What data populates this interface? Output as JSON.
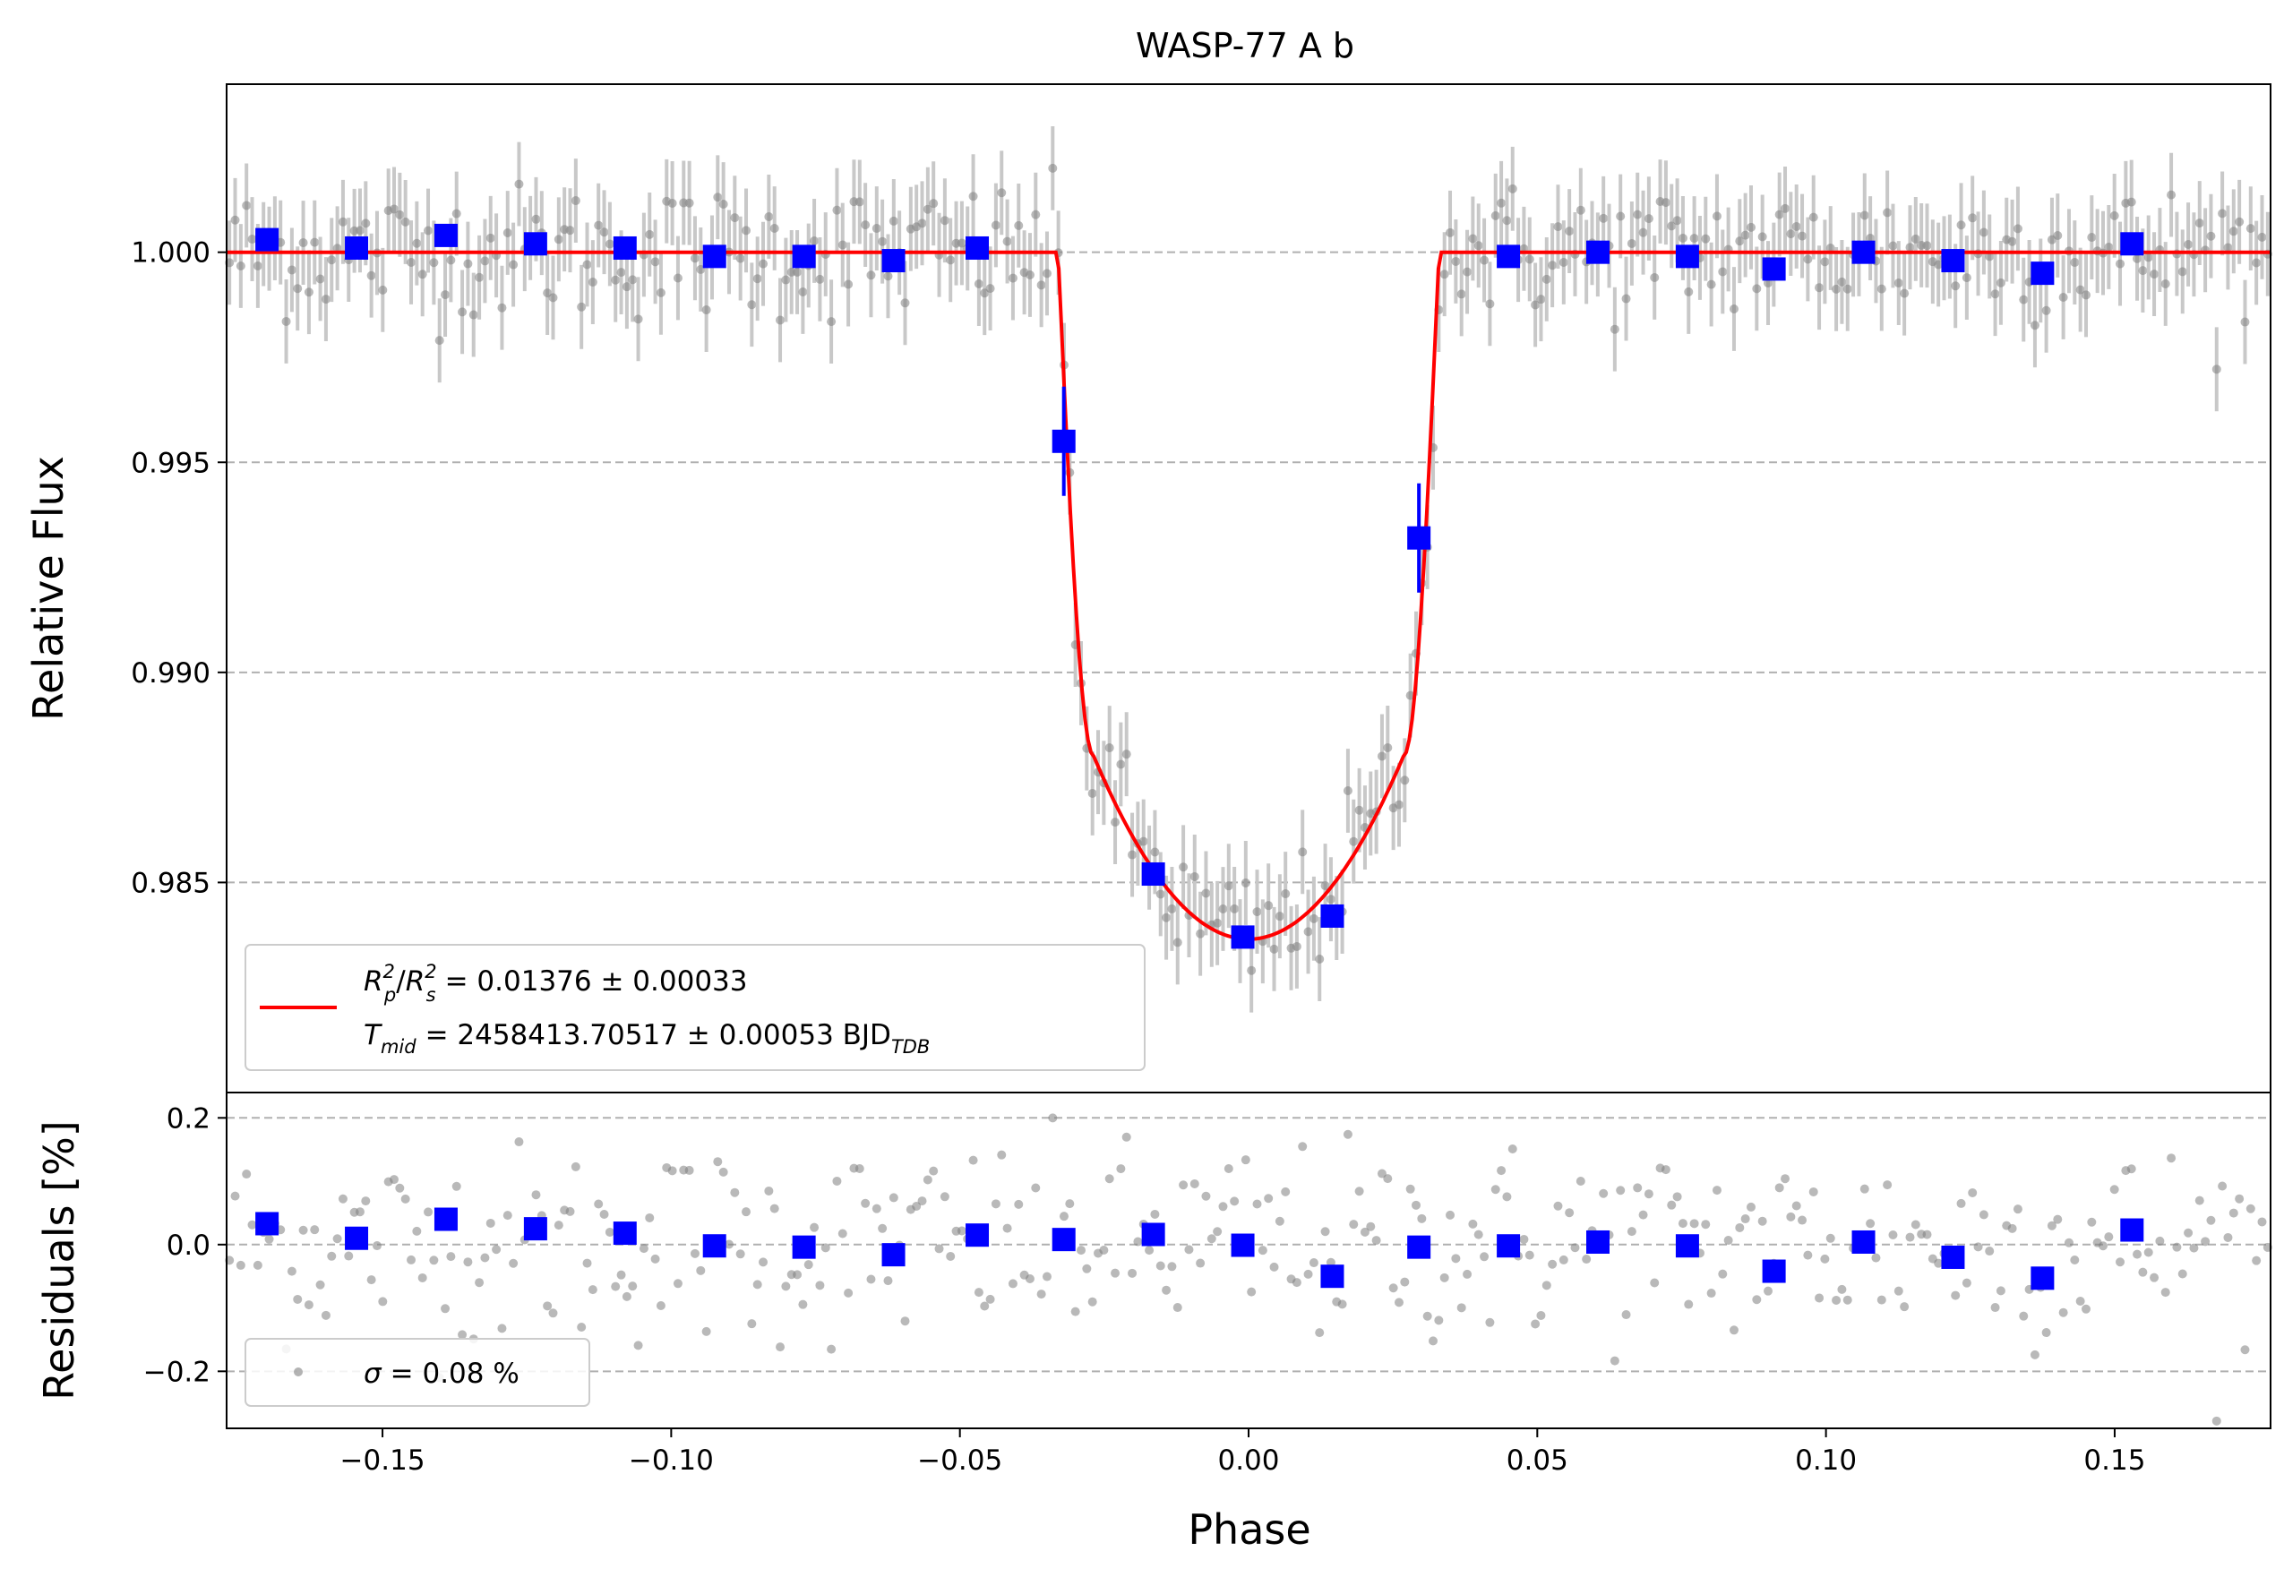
{
  "chart_data": {
    "type": "scatter",
    "title": "WASP-77 A b",
    "xlabel": "Phase",
    "top_panel": {
      "ylabel": "Relative Flux",
      "ylim": [
        0.98,
        1.004
      ],
      "yticks": [
        0.985,
        0.99,
        0.995,
        1.0
      ],
      "ytick_labels": [
        "0.985",
        "0.990",
        "0.995",
        "1.000"
      ],
      "grid": "horizontal dashed",
      "legend": {
        "location": "lower-left",
        "line1": {
          "r2_symbol": "R",
          "r2_sub": "p",
          "r2_sup": "2",
          "rs_symbol": "R",
          "rs_sub": "s",
          "rs_sup": "2",
          "value": "= 0.01376 ± 0.00033"
        },
        "line2": {
          "t_symbol": "T",
          "t_sub": "mid",
          "value": "= 2458413.70517 ± 0.00053 BJD",
          "unit_sub": "TDB"
        }
      },
      "model": {
        "name": "transit model",
        "color": "#ff0000",
        "baseline": 1.0,
        "depth_center": 0.98365,
        "contact1": -0.033,
        "contact2": -0.0268,
        "contact3": 0.0268,
        "contact4": 0.033,
        "flux_at_contact2": 0.988
      },
      "binned": {
        "color": "#0000ff",
        "x": [
          -0.17,
          -0.1545,
          -0.139,
          -0.1235,
          -0.108,
          -0.0925,
          -0.077,
          -0.0615,
          -0.047,
          -0.032,
          -0.0165,
          -0.001,
          0.0145,
          0.0295,
          0.045,
          0.0605,
          0.076,
          0.091,
          0.1065,
          0.122,
          0.1375,
          0.153
        ],
        "y": [
          1.0003,
          1.0001,
          1.0004,
          1.0002,
          1.0001,
          0.9999,
          0.9999,
          0.9998,
          1.0001,
          0.9955,
          0.9852,
          0.9837,
          0.9842,
          0.9932,
          0.9999,
          1.0,
          0.9999,
          0.9996,
          1.0,
          0.9998,
          0.9995,
          1.0002
        ],
        "yerr": [
          0.0001,
          0.0001,
          0.0001,
          0.0001,
          0.0001,
          0.0001,
          0.0001,
          0.0001,
          0.0001,
          0.0013,
          0.0001,
          0.0001,
          0.0001,
          0.0013,
          0.0001,
          0.0001,
          0.0001,
          0.0001,
          0.0001,
          0.0001,
          0.0001,
          0.0001
        ]
      },
      "raw_points": {
        "color": "#808080",
        "count": 360,
        "scatter_ppm": 800,
        "error_bar_ppm": 1000
      }
    },
    "bottom_panel": {
      "ylabel": "Residuals [%]",
      "ylim": [
        -0.29,
        0.24
      ],
      "yticks": [
        -0.2,
        0.0,
        0.2
      ],
      "ytick_labels": [
        "−0.2",
        "0.0",
        "0.2"
      ],
      "grid": "horizontal dashed",
      "legend": {
        "location": "lower-left",
        "sigma_symbol": "σ",
        "value": "= 0.08 %"
      },
      "binned": {
        "color": "#0000ff",
        "x": [
          -0.17,
          -0.1545,
          -0.139,
          -0.1235,
          -0.108,
          -0.0925,
          -0.077,
          -0.0615,
          -0.047,
          -0.032,
          -0.0165,
          -0.001,
          0.0145,
          0.0295,
          0.045,
          0.0605,
          0.076,
          0.091,
          0.1065,
          0.122,
          0.1375,
          0.153
        ],
        "y": [
          0.033,
          0.01,
          0.04,
          0.025,
          0.018,
          -0.002,
          -0.004,
          -0.016,
          0.015,
          0.008,
          0.016,
          -0.001,
          -0.05,
          -0.004,
          -0.002,
          0.004,
          -0.002,
          -0.042,
          0.004,
          -0.02,
          -0.053,
          0.023
        ]
      }
    },
    "x_axis": {
      "xlim": [
        -0.177,
        0.177
      ],
      "xticks": [
        -0.15,
        -0.1,
        -0.05,
        0.0,
        0.05,
        0.1,
        0.15
      ],
      "xtick_labels": [
        "−0.15",
        "−0.10",
        "−0.05",
        "0.00",
        "0.05",
        "0.10",
        "0.15"
      ]
    }
  }
}
